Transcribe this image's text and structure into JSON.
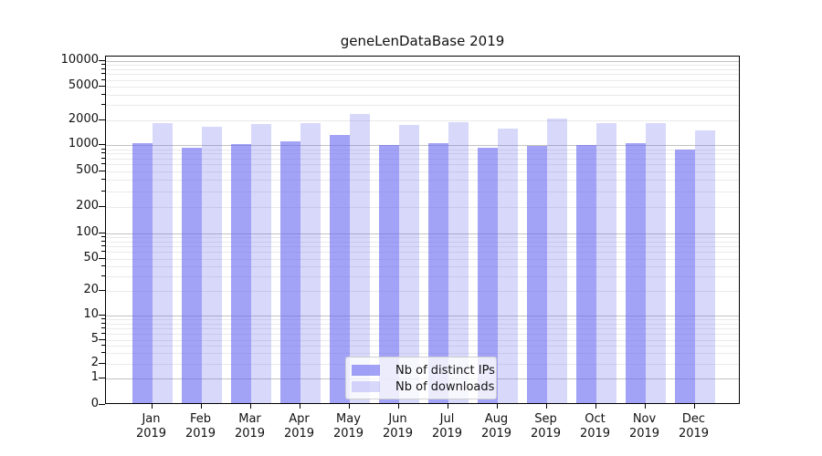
{
  "title": "geneLenDataBase 2019",
  "chart_data": {
    "type": "bar",
    "title": "geneLenDataBase 2019",
    "categories": [
      "Jan 2019",
      "Feb 2019",
      "Mar 2019",
      "Apr 2019",
      "May 2019",
      "Jun 2019",
      "Jul 2019",
      "Aug 2019",
      "Sep 2019",
      "Oct 2019",
      "Nov 2019",
      "Dec 2019"
    ],
    "series": [
      {
        "name": "Nb of distinct IPs",
        "color": "rgba(100,100,240,0.6)",
        "values": [
          1000,
          900,
          980,
          1050,
          1270,
          970,
          1000,
          900,
          930,
          950,
          1010,
          840
        ]
      },
      {
        "name": "Nb of downloads",
        "color": "rgba(100,100,240,0.25)",
        "values": [
          1760,
          1590,
          1690,
          1750,
          2230,
          1670,
          1810,
          1490,
          1990,
          1740,
          1770,
          1450
        ]
      }
    ],
    "xlabel": "",
    "ylabel": "",
    "yscale": "symlog",
    "ylim": [
      0,
      11000
    ],
    "yticks": [
      0,
      1,
      2,
      5,
      10,
      20,
      50,
      100,
      200,
      500,
      1000,
      2000,
      5000,
      10000
    ],
    "grid": "both (major darker, minor faint)",
    "legend_position": "lower center"
  },
  "colors": {
    "bar_dark": "rgba(100,100,240,0.6)",
    "bar_light": "rgba(100,100,240,0.25)",
    "grid_major": "#c2c2c2",
    "grid_minor": "#eaeaea",
    "text": "#111111"
  }
}
